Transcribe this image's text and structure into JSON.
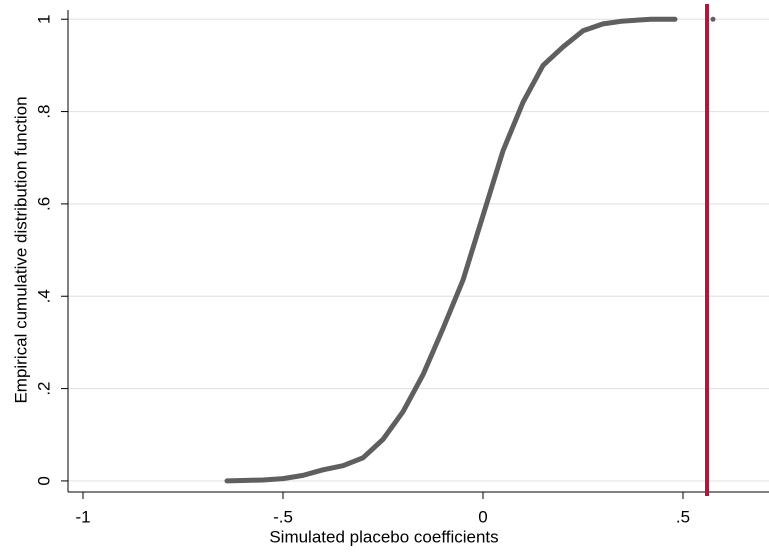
{
  "chart_data": {
    "type": "line",
    "xlabel": "Simulated placebo coefficients",
    "ylabel": "Empirical cumulative distribution function",
    "x": [
      -0.64,
      -0.6,
      -0.55,
      -0.5,
      -0.45,
      -0.4,
      -0.35,
      -0.3,
      -0.25,
      -0.2,
      -0.15,
      -0.1,
      -0.05,
      0,
      0.05,
      0.1,
      0.15,
      0.2,
      0.25,
      0.3,
      0.35,
      0.42,
      0.48
    ],
    "series": [
      {
        "color": "#5f5f5f",
        "values": [
          0,
          0.001,
          0.002,
          0.005,
          0.012,
          0.024,
          0.033,
          0.05,
          0.09,
          0.15,
          0.23,
          0.33,
          0.435,
          0.575,
          0.715,
          0.82,
          0.9,
          0.94,
          0.975,
          0.99,
          0.996,
          1,
          1
        ]
      }
    ],
    "points": {
      "x": [
        0.575
      ],
      "values": [
        1
      ],
      "color": "#5f5f5f"
    },
    "xline": {
      "value": 0.56,
      "color": "#b2163a"
    },
    "xlim": [
      -1.0375,
      0.715
    ],
    "ylim": [
      -0.024,
      1.02
    ],
    "xticks": [
      {
        "value": -1,
        "label": "-1"
      },
      {
        "value": -0.5,
        "label": "-.5"
      },
      0,
      {
        "value": 0.5,
        "label": ".5"
      }
    ],
    "yticks": [
      0,
      {
        "value": 0.2,
        "label": ".2"
      },
      {
        "value": 0.4,
        "label": ".4"
      },
      {
        "value": 0.6,
        "label": ".6"
      },
      {
        "value": 0.8,
        "label": ".8"
      },
      1
    ],
    "grid": true
  }
}
